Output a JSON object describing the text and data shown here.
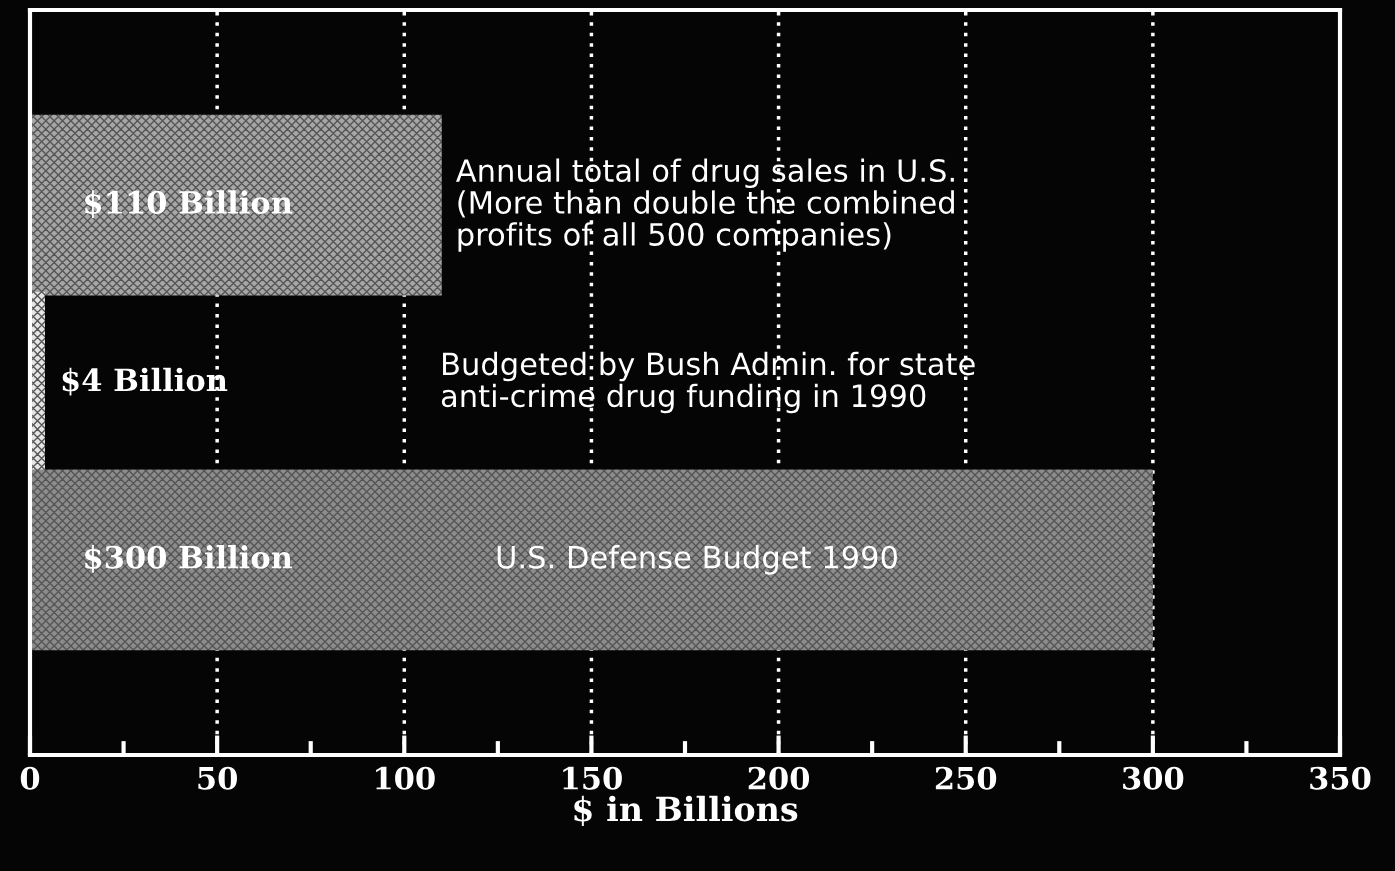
{
  "chart_data": {
    "type": "bar",
    "orientation": "horizontal",
    "xlabel": "$ in Billions",
    "categories": [
      null,
      null,
      null
    ],
    "values": [
      110,
      4,
      300
    ],
    "colors": [
      "#a6a6a6",
      "#e6e6e6",
      "#8c8c8c"
    ],
    "value_labels": [
      "$110 Billion",
      "$4 Billion",
      "$300 Billion"
    ],
    "annotations": [
      "Annual total of drug sales in U.S.\n(More than double the combined\nprofits of all 500 companies)",
      "Budgeted by Bush Admin. for state\nanti-crime drug funding in 1990",
      "U.S. Defense Budget 1990"
    ],
    "xlim": [
      0,
      350
    ],
    "xticks": [
      0,
      {
        "value": 25,
        "label": null
      },
      50,
      {
        "value": 75,
        "label": null
      },
      100,
      {
        "value": 125,
        "label": null
      },
      150,
      {
        "value": 175,
        "label": null
      },
      200,
      {
        "value": 225,
        "label": null
      },
      250,
      {
        "value": 275,
        "label": null
      },
      300,
      {
        "value": 325,
        "label": null
      },
      350
    ],
    "grid": "x"
  }
}
